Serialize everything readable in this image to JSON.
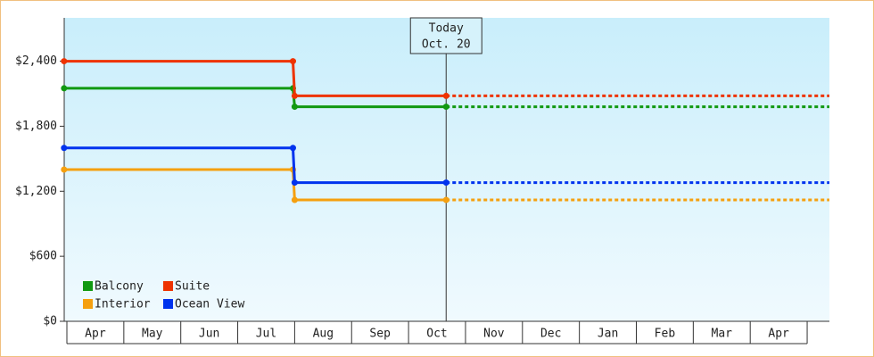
{
  "chart_data": {
    "type": "step-line",
    "categories": [
      "Apr",
      "May",
      "Jun",
      "Jul",
      "Aug",
      "Sep",
      "Oct",
      "Nov",
      "Dec",
      "Jan",
      "Feb",
      "Mar",
      "Apr"
    ],
    "xlim": [
      -0.05,
      13.39
    ],
    "ylim": [
      0,
      2800
    ],
    "yticks": [
      {
        "value": 0,
        "label": "$0"
      },
      {
        "value": 600,
        "label": "$600"
      },
      {
        "value": 1200,
        "label": "$1,200"
      },
      {
        "value": 1800,
        "label": "$1,800"
      },
      {
        "value": 2400,
        "label": "$2,400"
      }
    ],
    "series": [
      {
        "name": "Balcony",
        "color": "#119911",
        "x": [
          -0.05,
          3.97,
          4.0,
          6.66
        ],
        "values": [
          2150,
          2150,
          1980,
          1980
        ]
      },
      {
        "name": "Suite",
        "color": "#ee3300",
        "x": [
          -0.05,
          3.97,
          4.0,
          6.66
        ],
        "values": [
          2400,
          2400,
          2080,
          2080
        ]
      },
      {
        "name": "Interior",
        "color": "#f5a00f",
        "x": [
          -0.05,
          3.97,
          4.0,
          6.66
        ],
        "values": [
          1400,
          1400,
          1120,
          1120
        ]
      },
      {
        "name": "Ocean View",
        "color": "#0033ee",
        "x": [
          -0.05,
          3.97,
          4.0,
          6.66
        ],
        "values": [
          1600,
          1600,
          1280,
          1280
        ]
      }
    ],
    "projection": true,
    "annotation": {
      "lines": [
        "Today",
        "Oct. 20"
      ],
      "x": 6.66
    },
    "legend": "bottom-left"
  }
}
